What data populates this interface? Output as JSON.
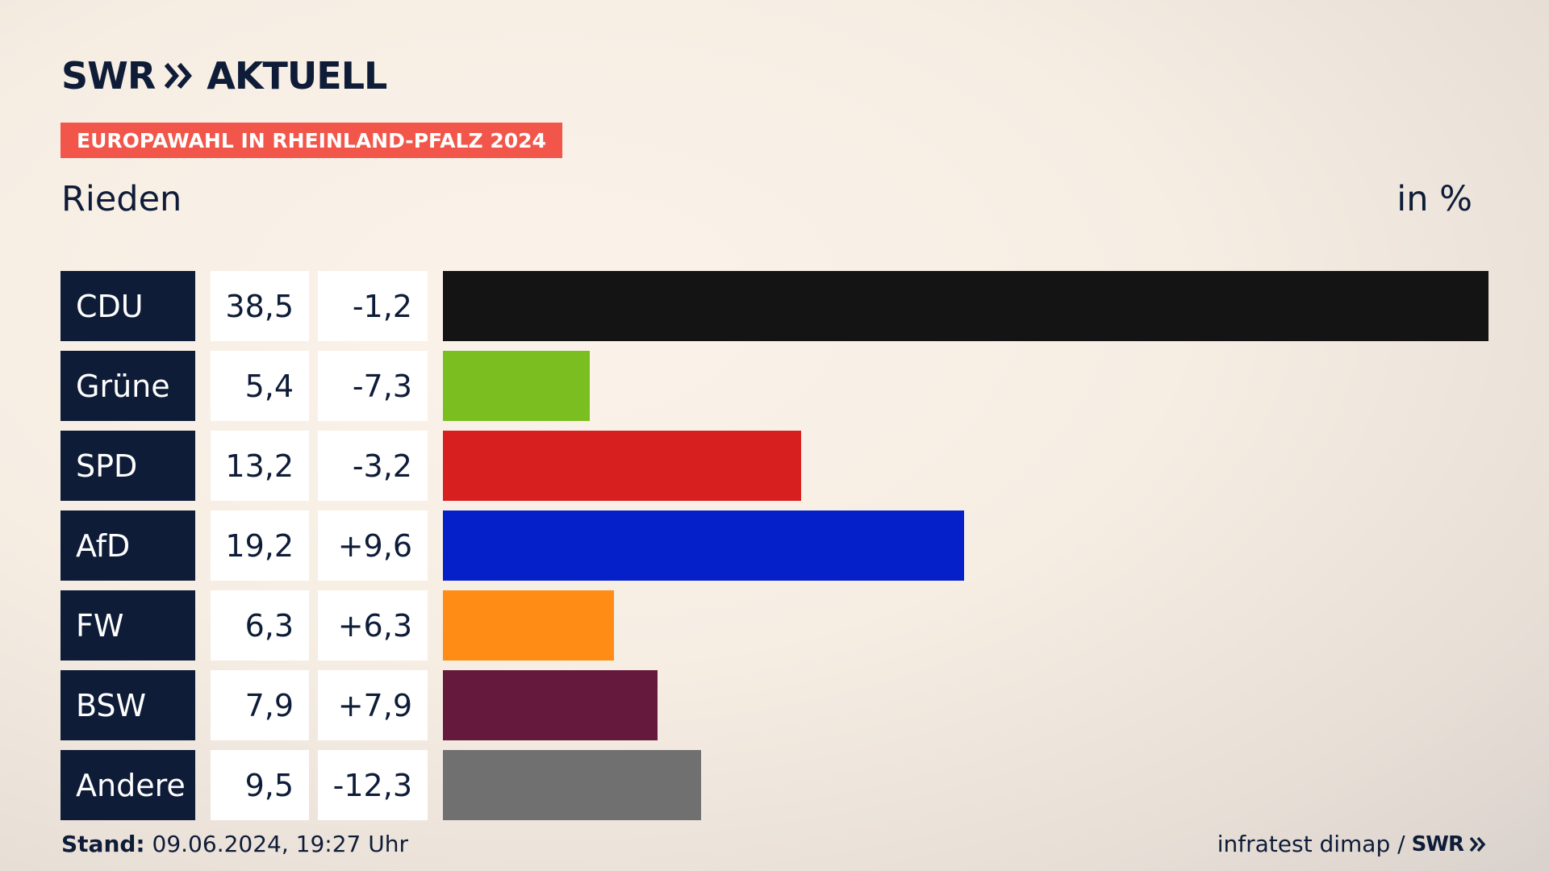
{
  "header": {
    "brand": "SWR",
    "brand_suffix": "AKTUELL",
    "tag": "EUROPAWAHL IN RHEINLAND-PFALZ 2024",
    "region": "Rieden",
    "unit": "in %"
  },
  "footer": {
    "stand_label": "Stand:",
    "stand_value": "09.06.2024, 19:27 Uhr",
    "source": "infratest dimap /",
    "source_logo": "SWR"
  },
  "chart_data": {
    "type": "bar",
    "orientation": "horizontal",
    "categories": [
      "CDU",
      "Grüne",
      "SPD",
      "AfD",
      "FW",
      "BSW",
      "Andere"
    ],
    "values": [
      38.5,
      5.4,
      13.2,
      19.2,
      6.3,
      7.9,
      9.5
    ],
    "value_labels": [
      "38,5",
      "5,4",
      "13,2",
      "19,2",
      "6,3",
      "7,9",
      "9,5"
    ],
    "diff_labels": [
      "-1,2",
      "-7,3",
      "-3,2",
      "+9,6",
      "+6,3",
      "+7,9",
      "-12,3"
    ],
    "colors": [
      "#141414",
      "#7abf1f",
      "#d81f1f",
      "#0520c8",
      "#ff8c14",
      "#65193d",
      "#707070"
    ],
    "xlim": [
      0,
      38.5
    ],
    "grid": false
  }
}
